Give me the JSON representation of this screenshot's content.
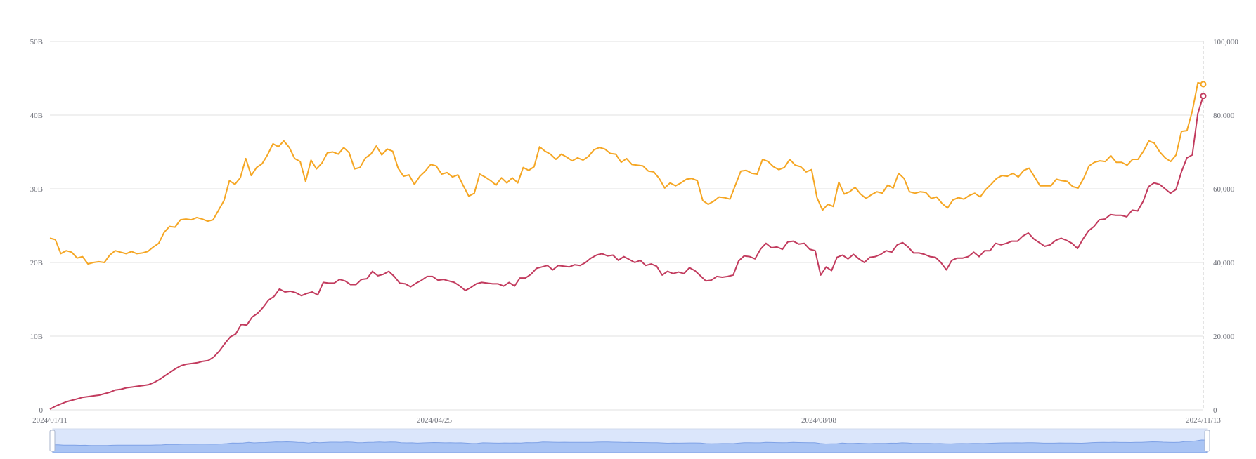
{
  "chart_data": {
    "type": "line",
    "title": "",
    "x_start": "2024/01/11",
    "x_end": "2024/11/13",
    "x_tick_labels": [
      "2024/01/11",
      "2024/04/25",
      "2024/08/08",
      "2024/11/13"
    ],
    "y_left": {
      "min": 0,
      "max": 50,
      "tick_labels": [
        "0",
        "10B",
        "20B",
        "30B",
        "40B",
        "50B"
      ]
    },
    "y_right": {
      "min": 0,
      "max": 100000,
      "tick_labels": [
        "0",
        "20,000",
        "40,000",
        "60,000",
        "80,000",
        "100,000"
      ]
    },
    "grid": true,
    "series": [
      {
        "axis": "left",
        "color": "#f5a623",
        "values": [
          23.3,
          23.1,
          21.2,
          21.6,
          21.4,
          20.6,
          20.8,
          19.8,
          20.0,
          20.1,
          20.0,
          21.0,
          21.6,
          21.4,
          21.2,
          21.5,
          21.2,
          21.3,
          21.5,
          22.1,
          22.6,
          24.1,
          24.9,
          24.8,
          25.8,
          25.9,
          25.8,
          26.1,
          25.9,
          25.6,
          25.8,
          27.1,
          28.4,
          31.1,
          30.6,
          31.5,
          34.1,
          31.8,
          32.9,
          33.4,
          34.6,
          36.1,
          35.7,
          36.5,
          35.6,
          34.1,
          33.7,
          31.0,
          33.9,
          32.7,
          33.5,
          34.9,
          35.0,
          34.7,
          35.6,
          34.9,
          32.7,
          32.9,
          34.2,
          34.7,
          35.8,
          34.6,
          35.4,
          35.1,
          32.8,
          31.7,
          31.9,
          30.6,
          31.7,
          32.4,
          33.3,
          33.1,
          32.0,
          32.2,
          31.6,
          31.9,
          30.4,
          29.0,
          29.4,
          32.0,
          31.6,
          31.1,
          30.5,
          31.5,
          30.8,
          31.5,
          30.8,
          32.9,
          32.5,
          33.0,
          35.7,
          35.1,
          34.7,
          34.0,
          34.7,
          34.3,
          33.8,
          34.2,
          33.9,
          34.4,
          35.3,
          35.6,
          35.4,
          34.8,
          34.7,
          33.6,
          34.1,
          33.3,
          33.2,
          33.1,
          32.4,
          32.3,
          31.4,
          30.1,
          30.8,
          30.4,
          30.8,
          31.3,
          31.4,
          31.1,
          28.4,
          27.9,
          28.3,
          28.9,
          28.8,
          28.6,
          30.5,
          32.4,
          32.5,
          32.1,
          32.0,
          34.0,
          33.7,
          33.0,
          32.6,
          32.9,
          34.0,
          33.2,
          33.0,
          32.3,
          32.6,
          28.8,
          27.1,
          27.9,
          27.6,
          30.9,
          29.3,
          29.6,
          30.2,
          29.3,
          28.7,
          29.2,
          29.6,
          29.4,
          30.5,
          30.1,
          32.1,
          31.4,
          29.6,
          29.4,
          29.6,
          29.5,
          28.7,
          28.9,
          28.0,
          27.4,
          28.5,
          28.8,
          28.6,
          29.1,
          29.4,
          28.9,
          29.9,
          30.6,
          31.4,
          31.8,
          31.7,
          32.1,
          31.6,
          32.5,
          32.8,
          31.6,
          30.4,
          30.4,
          30.4,
          31.3,
          31.1,
          31.0,
          30.3,
          30.1,
          31.4,
          33.1,
          33.6,
          33.8,
          33.7,
          34.5,
          33.6,
          33.6,
          33.2,
          34.0,
          34.0,
          35.1,
          36.5,
          36.2,
          35.0,
          34.2,
          33.7,
          34.6,
          37.8,
          37.9,
          40.6,
          44.4,
          44.2
        ]
      },
      {
        "axis": "left",
        "color": "#c23b5e",
        "values": [
          0.1,
          0.5,
          0.8,
          1.1,
          1.3,
          1.5,
          1.7,
          1.8,
          1.9,
          2.0,
          2.2,
          2.4,
          2.7,
          2.8,
          3.0,
          3.1,
          3.2,
          3.3,
          3.4,
          3.7,
          4.1,
          4.6,
          5.1,
          5.6,
          6.0,
          6.2,
          6.3,
          6.4,
          6.6,
          6.7,
          7.2,
          8.0,
          9.0,
          9.9,
          10.3,
          11.6,
          11.5,
          12.6,
          13.1,
          13.9,
          14.9,
          15.4,
          16.4,
          16.0,
          16.1,
          15.9,
          15.5,
          15.8,
          16.0,
          15.6,
          17.3,
          17.2,
          17.2,
          17.7,
          17.5,
          17.0,
          17.0,
          17.7,
          17.8,
          18.8,
          18.2,
          18.4,
          18.8,
          18.1,
          17.2,
          17.1,
          16.7,
          17.2,
          17.6,
          18.1,
          18.1,
          17.6,
          17.7,
          17.5,
          17.3,
          16.8,
          16.2,
          16.6,
          17.1,
          17.3,
          17.2,
          17.1,
          17.1,
          16.8,
          17.3,
          16.8,
          17.9,
          17.9,
          18.4,
          19.2,
          19.4,
          19.6,
          19.0,
          19.6,
          19.5,
          19.4,
          19.7,
          19.6,
          20.0,
          20.6,
          21.0,
          21.2,
          20.9,
          21.0,
          20.3,
          20.8,
          20.4,
          20.0,
          20.3,
          19.6,
          19.8,
          19.5,
          18.3,
          18.8,
          18.5,
          18.7,
          18.5,
          19.3,
          18.9,
          18.2,
          17.5,
          17.6,
          18.1,
          18.0,
          18.1,
          18.3,
          20.2,
          20.9,
          20.8,
          20.5,
          21.8,
          22.6,
          22.0,
          22.1,
          21.8,
          22.8,
          22.9,
          22.5,
          22.6,
          21.8,
          21.6,
          18.3,
          19.4,
          18.9,
          20.7,
          21.0,
          20.5,
          21.1,
          20.5,
          20.0,
          20.7,
          20.8,
          21.1,
          21.6,
          21.4,
          22.4,
          22.7,
          22.1,
          21.3,
          21.3,
          21.1,
          20.8,
          20.7,
          20.0,
          19.0,
          20.3,
          20.6,
          20.6,
          20.8,
          21.4,
          20.8,
          21.6,
          21.6,
          22.6,
          22.4,
          22.6,
          22.9,
          22.9,
          23.6,
          24.0,
          23.2,
          22.7,
          22.2,
          22.4,
          23.0,
          23.3,
          23.0,
          22.6,
          21.9,
          23.2,
          24.3,
          24.9,
          25.8,
          25.9,
          26.5,
          26.4,
          26.4,
          26.2,
          27.1,
          27.0,
          28.3,
          30.3,
          30.8,
          30.6,
          30.0,
          29.4,
          29.9,
          32.3,
          34.2,
          34.6,
          40.2,
          42.6
        ]
      }
    ]
  }
}
